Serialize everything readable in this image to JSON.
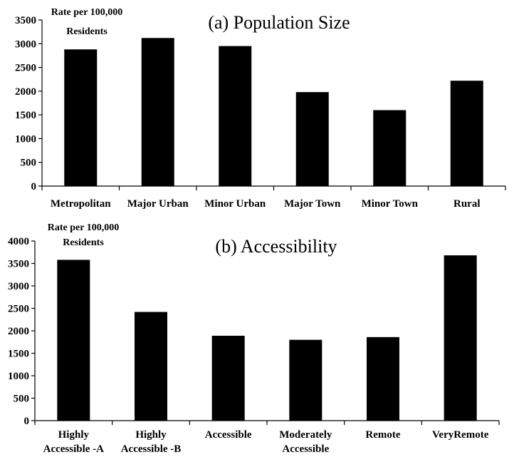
{
  "chart_data": [
    {
      "type": "bar",
      "title": "(a) Population Size",
      "ylabel": [
        "Rate per 100,000",
        "Residents"
      ],
      "xlabel": "",
      "ylim": [
        0,
        3500
      ],
      "yticks": [
        0,
        500,
        1000,
        1500,
        2000,
        2500,
        3000,
        3500
      ],
      "categories": [
        [
          "Metropolitan"
        ],
        [
          "Major Urban"
        ],
        [
          "Minor Urban"
        ],
        [
          "Major Town"
        ],
        [
          "Minor Town"
        ],
        [
          "Rural"
        ]
      ],
      "values": [
        2880,
        3120,
        2950,
        1980,
        1600,
        2220
      ],
      "bar_color": "#000000",
      "grid": false,
      "legend": "none"
    },
    {
      "type": "bar",
      "title": "(b) Accessibility",
      "ylabel": [
        "Rate per 100,000",
        "Residents"
      ],
      "xlabel": "",
      "ylim": [
        0,
        4000
      ],
      "yticks": [
        0,
        500,
        1000,
        1500,
        2000,
        2500,
        3000,
        3500,
        4000
      ],
      "categories": [
        [
          "Highly",
          "Accessible -A"
        ],
        [
          "Highly",
          "Accessible -B"
        ],
        [
          "Accessible"
        ],
        [
          "Moderately",
          "Accessible"
        ],
        [
          "Remote"
        ],
        [
          "VeryRemote"
        ]
      ],
      "values": [
        3580,
        2420,
        1890,
        1800,
        1860,
        3680
      ],
      "bar_color": "#000000",
      "grid": false,
      "legend": "none"
    }
  ]
}
